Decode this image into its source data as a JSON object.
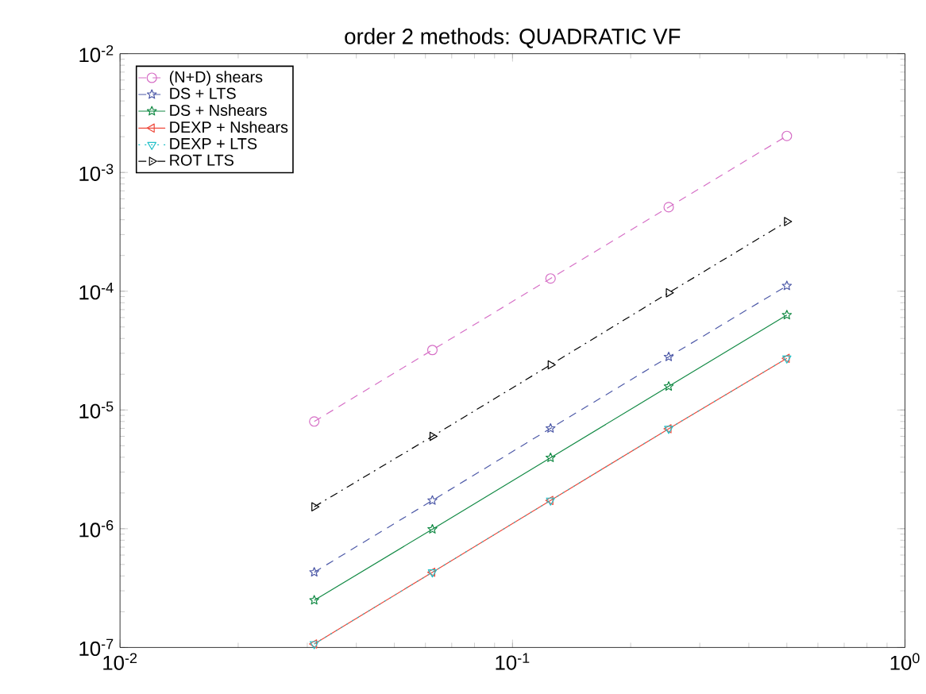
{
  "chart_data": {
    "type": "line",
    "title": "order 2 methods: QUADRATIC VF",
    "log": "xy",
    "x": [
      0.03125,
      0.0625,
      0.125,
      0.25,
      0.5
    ],
    "xlim": [
      0.01,
      1
    ],
    "ylim": [
      1e-07,
      0.01
    ],
    "xticks": [
      {
        "value": 0.01,
        "label": "10$^{-2}$"
      },
      {
        "value": 0.1,
        "label": "10$^{-1}$"
      },
      {
        "value": 1,
        "label": "10$^{0}$"
      }
    ],
    "yticks": [
      {
        "value": 1e-07,
        "label": "10$^{-7}$"
      },
      {
        "value": 1e-06,
        "label": "10$^{-6}$"
      },
      {
        "value": 1e-05,
        "label": "10$^{-5}$"
      },
      {
        "value": 0.0001,
        "label": "10$^{-4}$"
      },
      {
        "value": 0.001,
        "label": "10$^{-3}$"
      },
      {
        "value": 0.01,
        "label": "10$^{-2}$"
      }
    ],
    "legend": "top left",
    "series": [
      {
        "name": "(N+D) shears",
        "color": "#d66fc6",
        "marker": "circle",
        "line_style": "dashed",
        "values": [
          8e-06,
          3.2e-05,
          0.000128,
          0.00051,
          0.00203
        ]
      },
      {
        "name": "DS + LTS",
        "color": "#4e5aa8",
        "marker": "star",
        "line_style": "dashed",
        "values": [
          4.3e-07,
          1.73e-06,
          7e-06,
          2.8e-05,
          0.000111
        ]
      },
      {
        "name": "DS + Nshears",
        "color": "#138a45",
        "marker": "star",
        "line_style": "solid",
        "values": [
          2.5e-07,
          9.9e-07,
          3.96e-06,
          1.58e-05,
          6.3e-05
        ]
      },
      {
        "name": "DEXP + Nshears",
        "color": "#ee4a3c",
        "marker": "triangle-left",
        "line_style": "solid",
        "values": [
          1.07e-07,
          4.3e-07,
          1.73e-06,
          6.95e-06,
          2.72e-05
        ]
      },
      {
        "name": "DEXP + LTS",
        "color": "#22c0c8",
        "marker": "triangle-down",
        "line_style": "dotted",
        "values": [
          1.07e-07,
          4.3e-07,
          1.73e-06,
          6.95e-06,
          2.72e-05
        ]
      },
      {
        "name": "ROT LTS",
        "color": "#000000",
        "marker": "triangle-right",
        "line_style": "dashdot",
        "values": [
          1.53e-06,
          6e-06,
          2.4e-05,
          9.7e-05,
          0.000386
        ]
      }
    ]
  }
}
